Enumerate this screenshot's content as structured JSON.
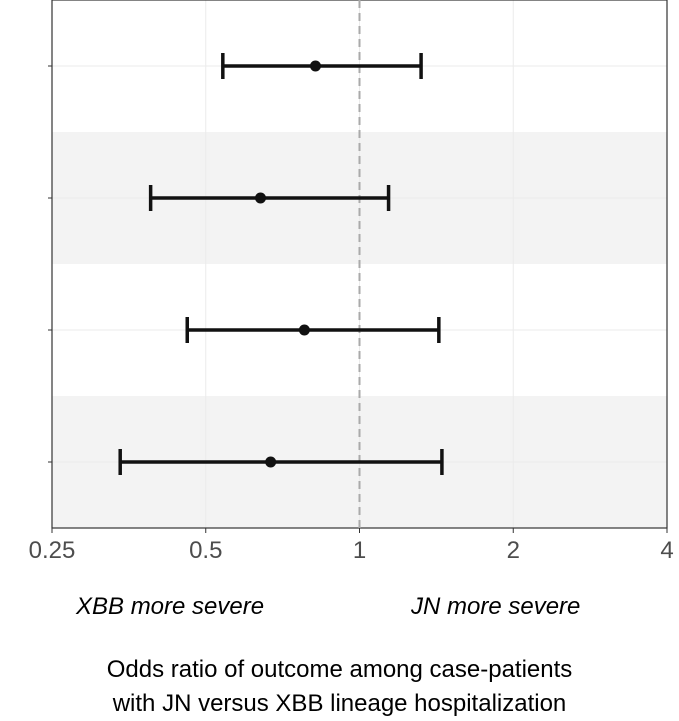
{
  "chart_data": {
    "type": "forest",
    "xscale": "log2",
    "xlim": [
      0.25,
      4
    ],
    "xticks": [
      0.25,
      0.5,
      1,
      2,
      4
    ],
    "xtick_labels": [
      "0.25",
      "0.5",
      "1",
      "2",
      "4"
    ],
    "reference_line": 1,
    "grid": true,
    "y_tick_labels": [
      "",
      "",
      "",
      ""
    ],
    "rows": [
      {
        "estimate": 0.82,
        "lower": 0.54,
        "upper": 1.32
      },
      {
        "estimate": 0.64,
        "lower": 0.39,
        "upper": 1.14
      },
      {
        "estimate": 0.78,
        "lower": 0.46,
        "upper": 1.43
      },
      {
        "estimate": 0.67,
        "lower": 0.34,
        "upper": 1.45
      }
    ],
    "left_annotation": "XBB more severe",
    "right_annotation": "JN more severe",
    "xlabel_line1": "Odds ratio of outcome among case-patients",
    "xlabel_line2": "with JN versus XBB lineage hospitalization"
  }
}
